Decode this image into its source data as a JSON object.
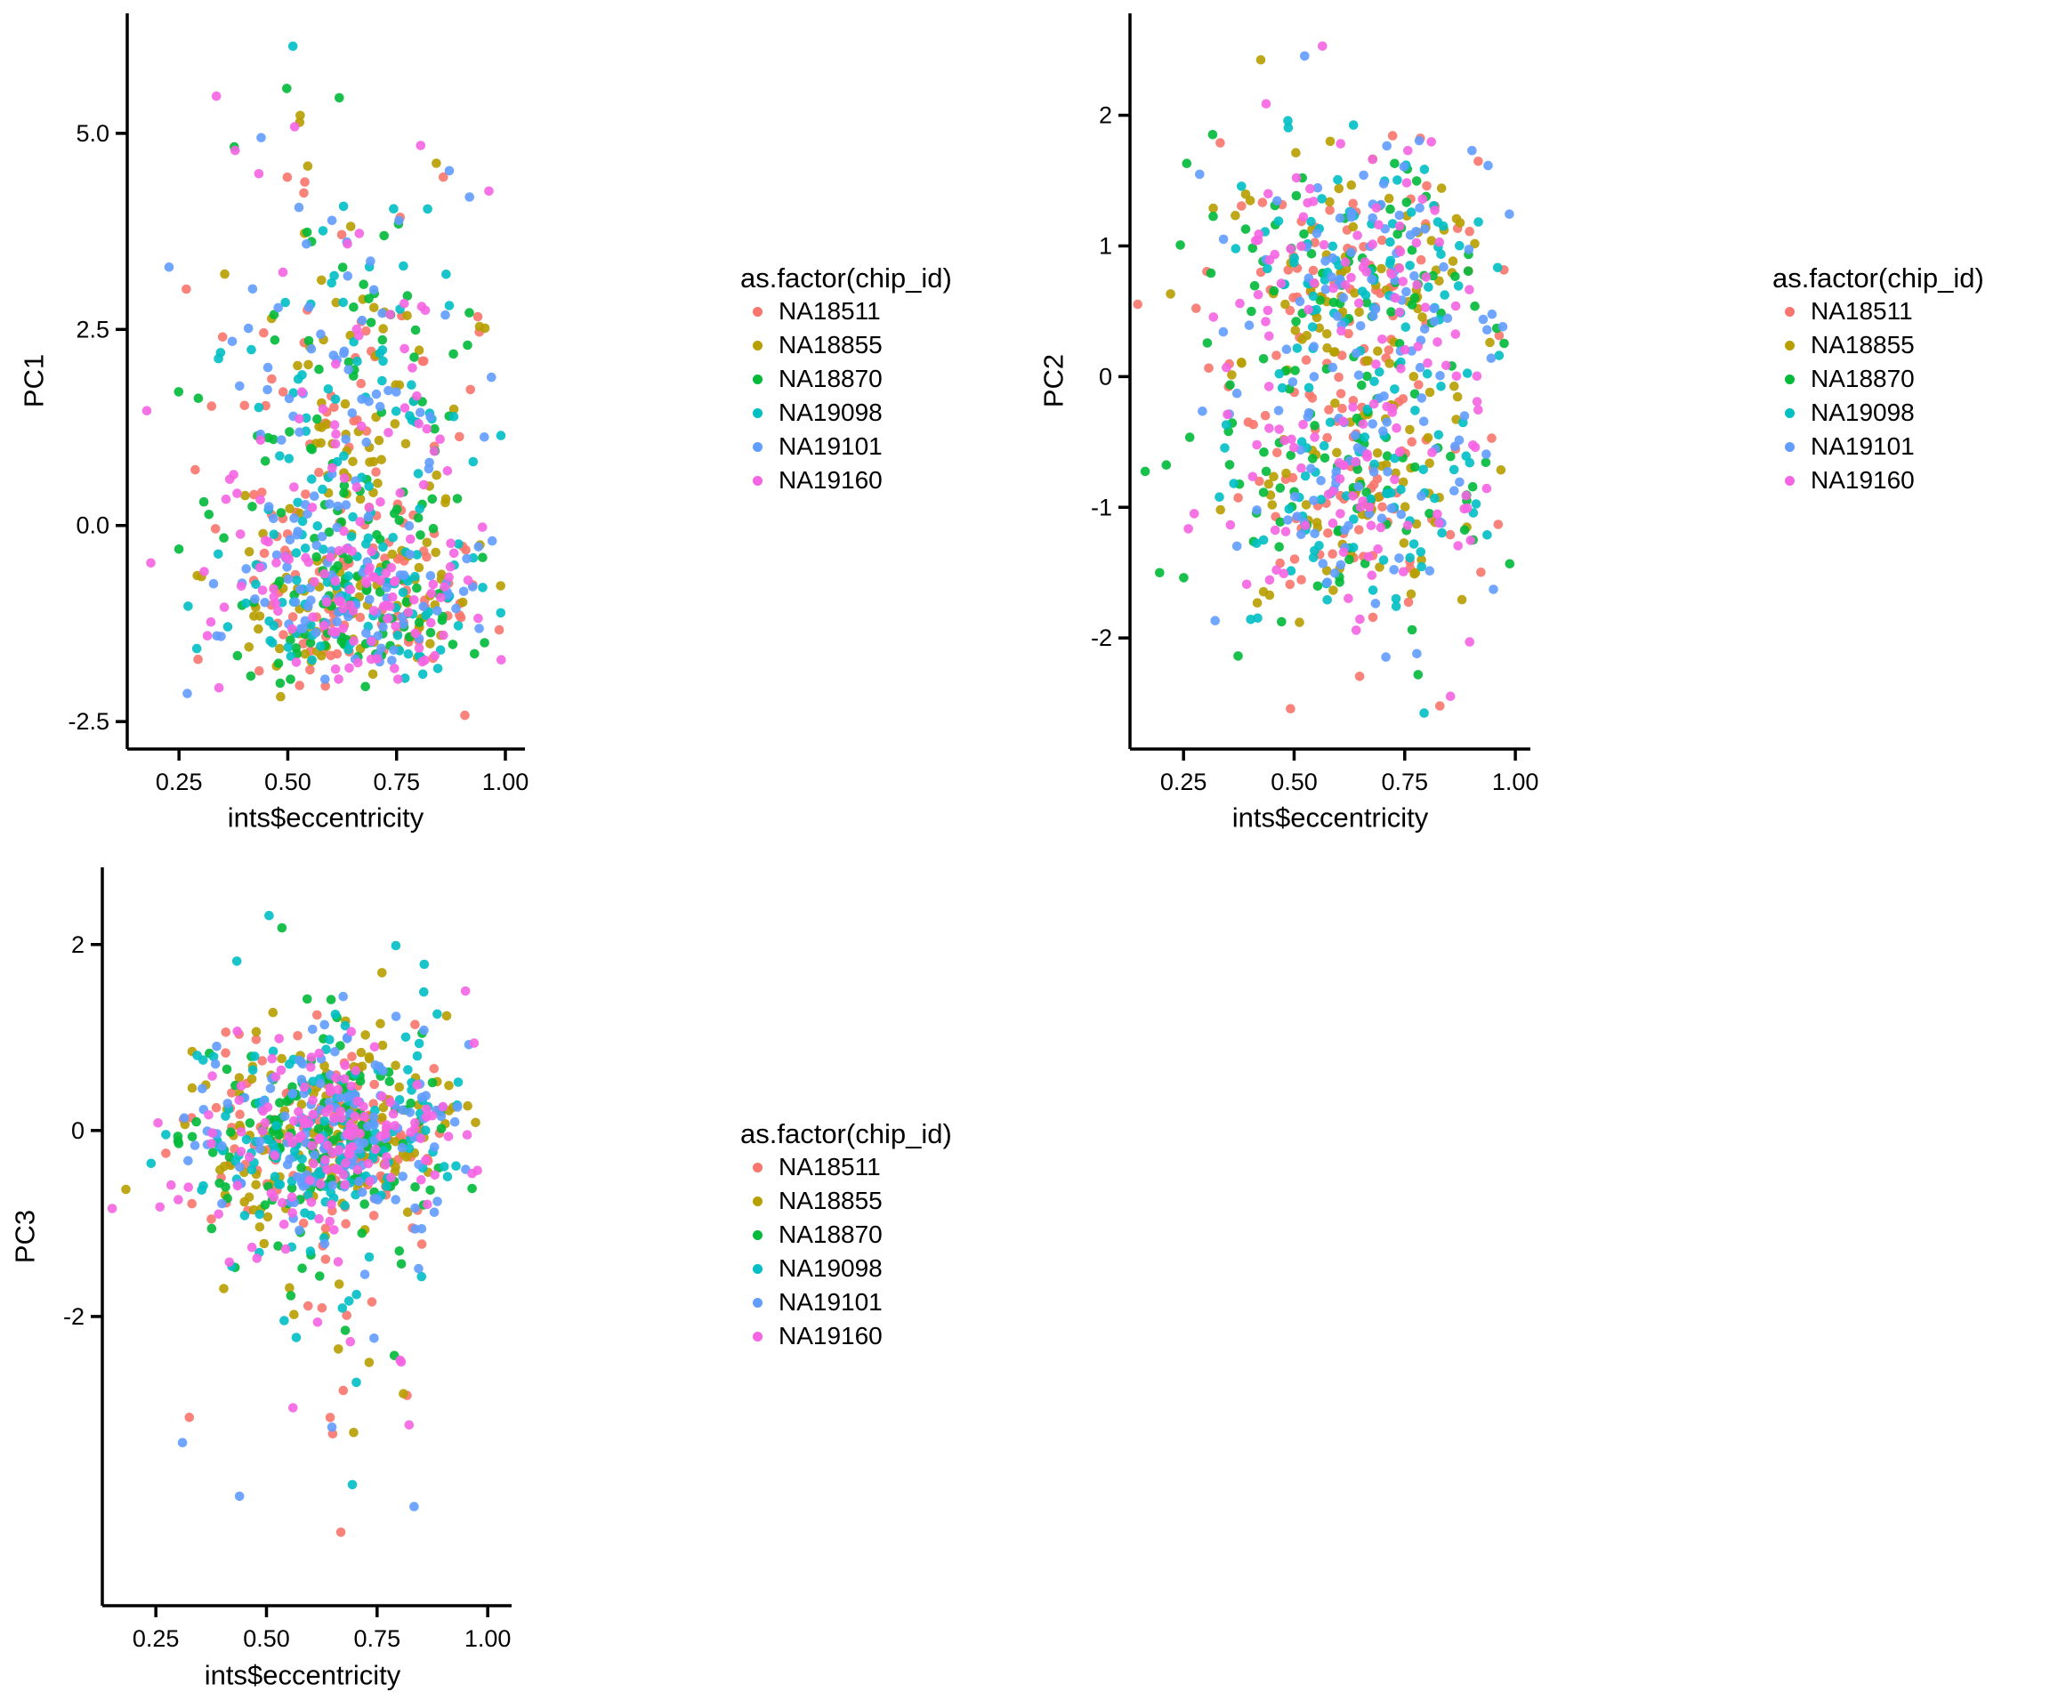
{
  "figure": {
    "background": "#ffffff",
    "text_color": "#000000",
    "axis_color": "#000000"
  },
  "legend": {
    "title": "as.factor(chip_id)",
    "items": [
      {
        "label": "NA18511",
        "color": "#F8766D"
      },
      {
        "label": "NA18855",
        "color": "#B79F00"
      },
      {
        "label": "NA18870",
        "color": "#00BA38"
      },
      {
        "label": "NA19098",
        "color": "#00BFC4"
      },
      {
        "label": "NA19101",
        "color": "#619CFF"
      },
      {
        "label": "NA19160",
        "color": "#F564E2"
      }
    ]
  },
  "chart_data": [
    {
      "type": "scatter",
      "title": "",
      "xlabel": "ints$eccentricity",
      "ylabel": "PC1",
      "legend_title": "as.factor(chip_id)",
      "legend_position": "right",
      "grid": false,
      "xlim": [
        0.131,
        1.045
      ],
      "ylim": [
        -2.85,
        6.53
      ],
      "x_ticks": {
        "values": [
          0.25,
          0.5,
          0.75,
          1.0
        ],
        "labels": [
          "0.25",
          "0.50",
          "0.75",
          "1.00"
        ]
      },
      "y_ticks": {
        "values": [
          -2.5,
          0.0,
          2.5,
          5.0
        ],
        "labels": [
          "-2.5",
          "0.0",
          "2.5",
          "5.0"
        ]
      },
      "series": [
        {
          "name": "NA18511",
          "color": "#F8766D",
          "n": 144
        },
        {
          "name": "NA18855",
          "color": "#B79F00",
          "n": 144
        },
        {
          "name": "NA18870",
          "color": "#00BA38",
          "n": 144
        },
        {
          "name": "NA19098",
          "color": "#00BFC4",
          "n": 144
        },
        {
          "name": "NA19101",
          "color": "#619CFF",
          "n": 144
        },
        {
          "name": "NA19160",
          "color": "#F564E2",
          "n": 144
        }
      ],
      "x_distribution": {
        "type": "normal",
        "mean": 0.645,
        "sd": 0.16,
        "clip": [
          0.131,
          0.993
        ]
      },
      "y_distribution": {
        "type": "mixture",
        "clip": [
          -2.45,
          6.3
        ],
        "components": [
          {
            "weight": 0.58,
            "mean": -0.95,
            "sd": 0.55
          },
          {
            "weight": 0.34,
            "mean": 1.2,
            "sd": 1.1
          },
          {
            "weight": 0.08,
            "mean": 3.6,
            "sd": 1.15
          }
        ]
      },
      "seed": 11
    },
    {
      "type": "scatter",
      "title": "",
      "xlabel": "ints$eccentricity",
      "ylabel": "PC2",
      "legend_title": "as.factor(chip_id)",
      "legend_position": "right",
      "grid": false,
      "xlim": [
        0.129,
        1.034
      ],
      "ylim": [
        -2.85,
        2.78
      ],
      "x_ticks": {
        "values": [
          0.25,
          0.5,
          0.75,
          1.0
        ],
        "labels": [
          "0.25",
          "0.50",
          "0.75",
          "1.00"
        ]
      },
      "y_ticks": {
        "values": [
          -2,
          -1,
          0,
          1,
          2
        ],
        "labels": [
          "-2",
          "-1",
          "0",
          "1",
          "2"
        ]
      },
      "series": [
        {
          "name": "NA18511",
          "color": "#F8766D",
          "n": 144
        },
        {
          "name": "NA18855",
          "color": "#B79F00",
          "n": 144
        },
        {
          "name": "NA18870",
          "color": "#00BA38",
          "n": 144
        },
        {
          "name": "NA19098",
          "color": "#00BFC4",
          "n": 144
        },
        {
          "name": "NA19101",
          "color": "#619CFF",
          "n": 144
        },
        {
          "name": "NA19160",
          "color": "#F564E2",
          "n": 144
        }
      ],
      "x_distribution": {
        "type": "normal",
        "mean": 0.645,
        "sd": 0.16,
        "clip": [
          0.131,
          0.993
        ]
      },
      "y_distribution": {
        "type": "mixture",
        "clip": [
          -2.6,
          2.62
        ],
        "components": [
          {
            "weight": 0.42,
            "mean": 0.8,
            "sd": 0.5
          },
          {
            "weight": 0.4,
            "mean": -0.85,
            "sd": 0.5
          },
          {
            "weight": 0.18,
            "mean": 0.0,
            "sd": 1.15
          }
        ]
      },
      "seed": 22
    },
    {
      "type": "scatter",
      "title": "",
      "xlabel": "ints$eccentricity",
      "ylabel": "PC3",
      "legend_title": "as.factor(chip_id)",
      "legend_position": "right",
      "grid": false,
      "xlim": [
        0.129,
        1.054
      ],
      "ylim": [
        -5.11,
        2.83
      ],
      "x_ticks": {
        "values": [
          0.25,
          0.5,
          0.75,
          1.0
        ],
        "labels": [
          "0.25",
          "0.50",
          "0.75",
          "1.00"
        ]
      },
      "y_ticks": {
        "values": [
          -2,
          0,
          2
        ],
        "labels": [
          "-2",
          "0",
          "2"
        ]
      },
      "series": [
        {
          "name": "NA18511",
          "color": "#F8766D",
          "n": 144
        },
        {
          "name": "NA18855",
          "color": "#B79F00",
          "n": 144
        },
        {
          "name": "NA18870",
          "color": "#00BA38",
          "n": 144
        },
        {
          "name": "NA19098",
          "color": "#00BFC4",
          "n": 144
        },
        {
          "name": "NA19101",
          "color": "#619CFF",
          "n": 144
        },
        {
          "name": "NA19160",
          "color": "#F564E2",
          "n": 144
        }
      ],
      "x_distribution": {
        "type": "normal",
        "mean": 0.645,
        "sd": 0.16,
        "clip": [
          0.131,
          0.993
        ]
      },
      "y_distribution": {
        "type": "mixture",
        "clip": [
          -4.75,
          2.6
        ],
        "components": [
          {
            "weight": 0.8,
            "mean": -0.03,
            "sd": 0.5
          },
          {
            "weight": 0.17,
            "mean": -0.4,
            "sd": 1.05
          },
          {
            "weight": 0.03,
            "mean": -2.4,
            "sd": 1.1
          }
        ]
      },
      "seed": 33
    }
  ]
}
